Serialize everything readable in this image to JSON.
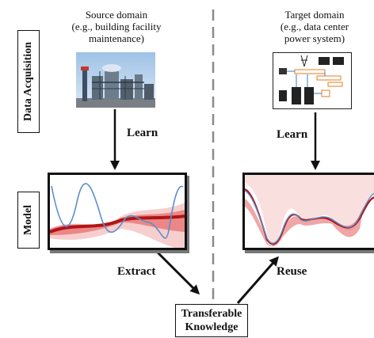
{
  "source": {
    "title_line1": "Source domain",
    "title_line2": "(e.g., building facility",
    "title_line3": "maintenance)"
  },
  "target": {
    "title_line1": "Target domain",
    "title_line2": "(e.g., data center",
    "title_line3": "power system)"
  },
  "rows": {
    "data_acquisition": "Data Acquisition",
    "model": "Model"
  },
  "arrows": {
    "learn_source": "Learn",
    "learn_target": "Learn",
    "extract": "Extract",
    "reuse": "Reuse"
  },
  "knowledge": {
    "line1": "Transferable",
    "line2": "Knowledge"
  },
  "colors": {
    "curve_blue": "#5b8fc9",
    "uncertainty_red": "#d62020",
    "divider": "#888888"
  }
}
